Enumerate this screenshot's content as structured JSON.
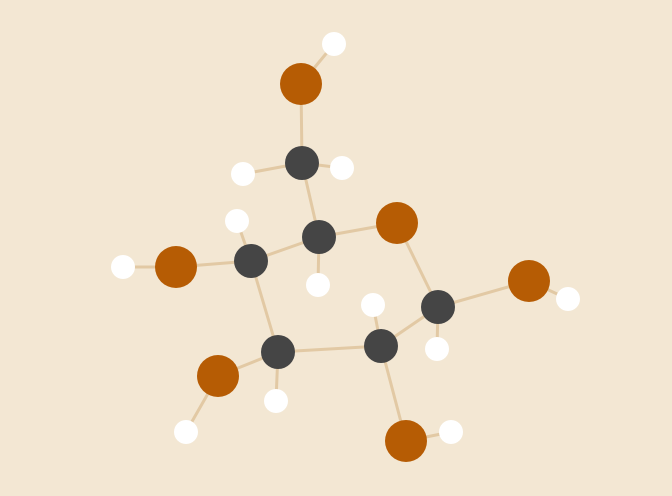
{
  "background_color": "#f3e7d3",
  "bond_color": "#e2c9a4",
  "element_colors": {
    "C": "#454545",
    "O": "#b65c04",
    "H": "#ffffff"
  },
  "molecule": {
    "atoms": [
      {
        "id": "c1",
        "element": "C"
      },
      {
        "id": "c2",
        "element": "C"
      },
      {
        "id": "c3",
        "element": "C"
      },
      {
        "id": "c4",
        "element": "C"
      },
      {
        "id": "c5",
        "element": "C"
      },
      {
        "id": "c6",
        "element": "C"
      },
      {
        "id": "o-ring",
        "element": "O"
      },
      {
        "id": "o1",
        "element": "O"
      },
      {
        "id": "o2",
        "element": "O"
      },
      {
        "id": "o3",
        "element": "O"
      },
      {
        "id": "o4",
        "element": "O"
      },
      {
        "id": "o6",
        "element": "O"
      },
      {
        "id": "h1",
        "element": "H"
      },
      {
        "id": "ho1",
        "element": "H"
      },
      {
        "id": "h2",
        "element": "H"
      },
      {
        "id": "ho2",
        "element": "H"
      },
      {
        "id": "h3",
        "element": "H"
      },
      {
        "id": "ho3",
        "element": "H"
      },
      {
        "id": "h4",
        "element": "H"
      },
      {
        "id": "ho4",
        "element": "H"
      },
      {
        "id": "h5",
        "element": "H"
      },
      {
        "id": "h6a",
        "element": "H"
      },
      {
        "id": "h6b",
        "element": "H"
      },
      {
        "id": "ho6",
        "element": "H"
      }
    ],
    "bonds": [
      [
        "o6",
        "ho6"
      ],
      [
        "o6",
        "c6"
      ],
      [
        "c6",
        "h6a"
      ],
      [
        "c6",
        "h6b"
      ],
      [
        "c6",
        "c5"
      ],
      [
        "c5",
        "o-ring"
      ],
      [
        "c5",
        "h5"
      ],
      [
        "c5",
        "c4"
      ],
      [
        "c4",
        "h4"
      ],
      [
        "c4",
        "o4"
      ],
      [
        "o4",
        "ho4"
      ],
      [
        "c4",
        "c3"
      ],
      [
        "c3",
        "o3"
      ],
      [
        "o3",
        "ho3"
      ],
      [
        "c3",
        "h3"
      ],
      [
        "c3",
        "c2"
      ],
      [
        "c2",
        "h2"
      ],
      [
        "c2",
        "o2"
      ],
      [
        "o2",
        "ho2"
      ],
      [
        "c2",
        "c1"
      ],
      [
        "c1",
        "h1"
      ],
      [
        "c1",
        "o1"
      ],
      [
        "o1",
        "ho1"
      ],
      [
        "c1",
        "o-ring"
      ]
    ]
  }
}
